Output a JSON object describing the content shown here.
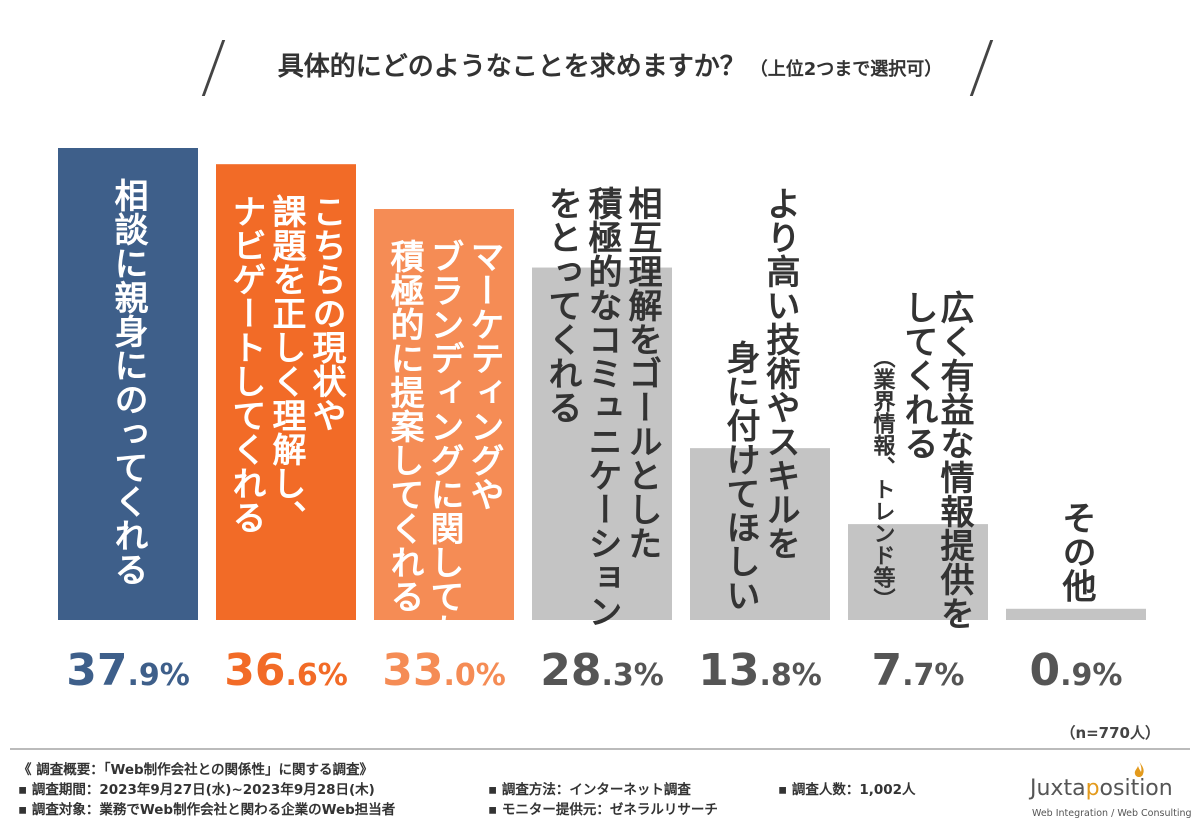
{
  "title": {
    "main": "具体的にどのようなことを求めますか？",
    "sub": "（上位2つまで選択可）"
  },
  "colors": {
    "rank1": "#3e5f8a",
    "rank2": "#f26b27",
    "rank3": "#f58c55",
    "other": "#c4c4c4",
    "value_rank1": "#3e5f8a",
    "value_rank2": "#f26b27",
    "value_rank3": "#f58c55",
    "value_other": "#555555"
  },
  "chart_data": {
    "type": "bar",
    "ylim": [
      0,
      40
    ],
    "grid": false,
    "categories": [
      "相談に親身にのってくれる",
      "こちらの現状や課題を正しく理解し、ナビゲートしてくれる",
      "マーケティングやブランディングに関しても積極的に提案してくれる",
      "相互理解をゴールとした積極的なコミュニケーションをとってくれる",
      "より高い技術やスキルを身に付けてほしい",
      "広く有益な情報提供をしてくれる（業界情報、トレンド等）",
      "その他"
    ],
    "label_lines": [
      [
        "相談に親身にのってくれる"
      ],
      [
        "こちらの現状や",
        "課題を正しく理解し、",
        "ナビゲートしてくれる"
      ],
      [
        "マーケティングや",
        "ブランディングに関しても",
        "積極的に提案してくれる"
      ],
      [
        "相互理解をゴールとした",
        "積極的なコミュニケーション",
        "をとってくれる"
      ],
      [
        "より高い技術やスキルを",
        "身に付けてほしい"
      ],
      [
        "広く有益な情報提供を",
        "してくれる",
        "（業界情報、トレンド等）"
      ],
      [
        "その他"
      ]
    ],
    "values": [
      37.9,
      36.6,
      33.0,
      28.3,
      13.8,
      7.7,
      0.9
    ],
    "value_labels": [
      "37.9%",
      "36.6%",
      "33.0%",
      "28.3%",
      "13.8%",
      "7.7%",
      "0.9%"
    ]
  },
  "sample_size": "（n=770人）",
  "footer": {
    "overview": "《 調査概要：「Web制作会社との関係性」に関する調査》",
    "period": "▪ 調査期間：2023年9月27日(水)~2023年9月28日(木)",
    "target": "▪ 調査対象：業務でWeb制作会社と関わる企業のWeb担当者",
    "method": "▪ 調査方法：インターネット調査",
    "monitor": "▪ モニター提供元：ゼネラルリサーチ",
    "count": "▪ 調査人数：1,002人"
  },
  "logo": {
    "prefix": "Juxta",
    "accent": "p",
    "suffix": "osition",
    "tagline": "Web Integration / Web Consulting",
    "accent_color": "#e39a1c"
  }
}
